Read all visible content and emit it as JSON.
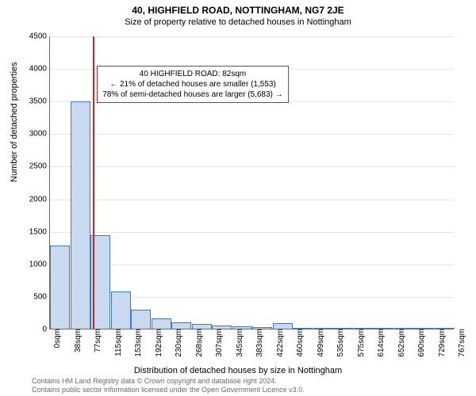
{
  "title": "40, HIGHFIELD ROAD, NOTTINGHAM, NG7 2JE",
  "subtitle": "Size of property relative to detached houses in Nottingham",
  "ylabel": "Number of detached properties",
  "xlabel": "Distribution of detached houses by size in Nottingham",
  "chart": {
    "type": "bar",
    "background": "#ffffff",
    "grid_color": "#e6e6e6",
    "axis_color": "#6b6b6b",
    "bar_fill": "#c9d9f0",
    "bar_border": "#4477bb",
    "marker_color": "#cc2222",
    "info_border": "#cc2222",
    "ylim": [
      0,
      4500
    ],
    "ytick_step": 500,
    "yticks": [
      "0",
      "500",
      "1000",
      "1500",
      "2000",
      "2500",
      "3000",
      "3500",
      "4000",
      "4500"
    ],
    "xticks": [
      "0sqm",
      "38sqm",
      "77sqm",
      "115sqm",
      "153sqm",
      "192sqm",
      "230sqm",
      "268sqm",
      "307sqm",
      "345sqm",
      "383sqm",
      "422sqm",
      "460sqm",
      "499sqm",
      "535sqm",
      "575sqm",
      "614sqm",
      "652sqm",
      "690sqm",
      "729sqm",
      "767sqm"
    ],
    "bars": [
      1280,
      3490,
      1440,
      570,
      290,
      160,
      100,
      70,
      50,
      40,
      30,
      80,
      5,
      3,
      2,
      2,
      1,
      1,
      1,
      1
    ],
    "marker_x_index": 2,
    "marker_fraction_in_bar": 0.13
  },
  "info": {
    "line1": "40 HIGHFIELD ROAD: 82sqm",
    "line2": "← 21% of detached houses are smaller (1,553)",
    "line3": "78% of semi-detached houses are larger (5,683) →"
  },
  "footer1": "Contains HM Land Registry data © Crown copyright and database right 2024.",
  "footer2": "Contains public sector information licensed under the Open Government Licence v3.0."
}
